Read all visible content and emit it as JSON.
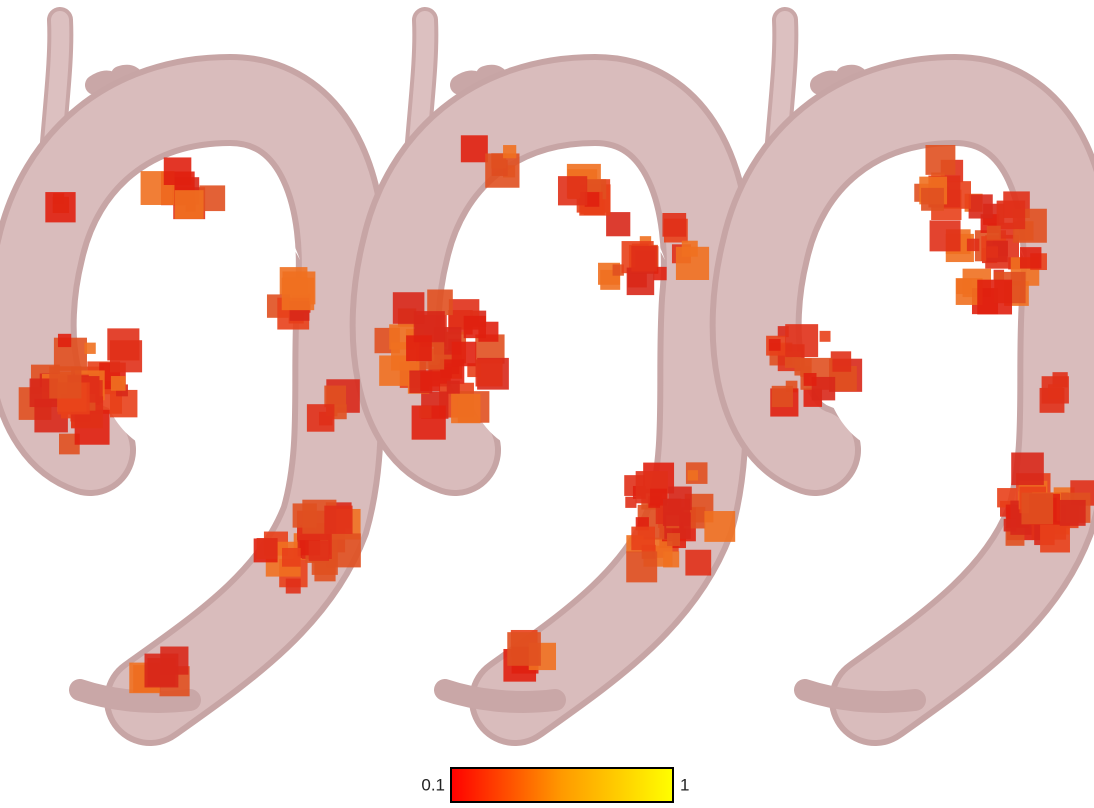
{
  "colorbar": {
    "min": 0.1,
    "max": 1
  }
}
